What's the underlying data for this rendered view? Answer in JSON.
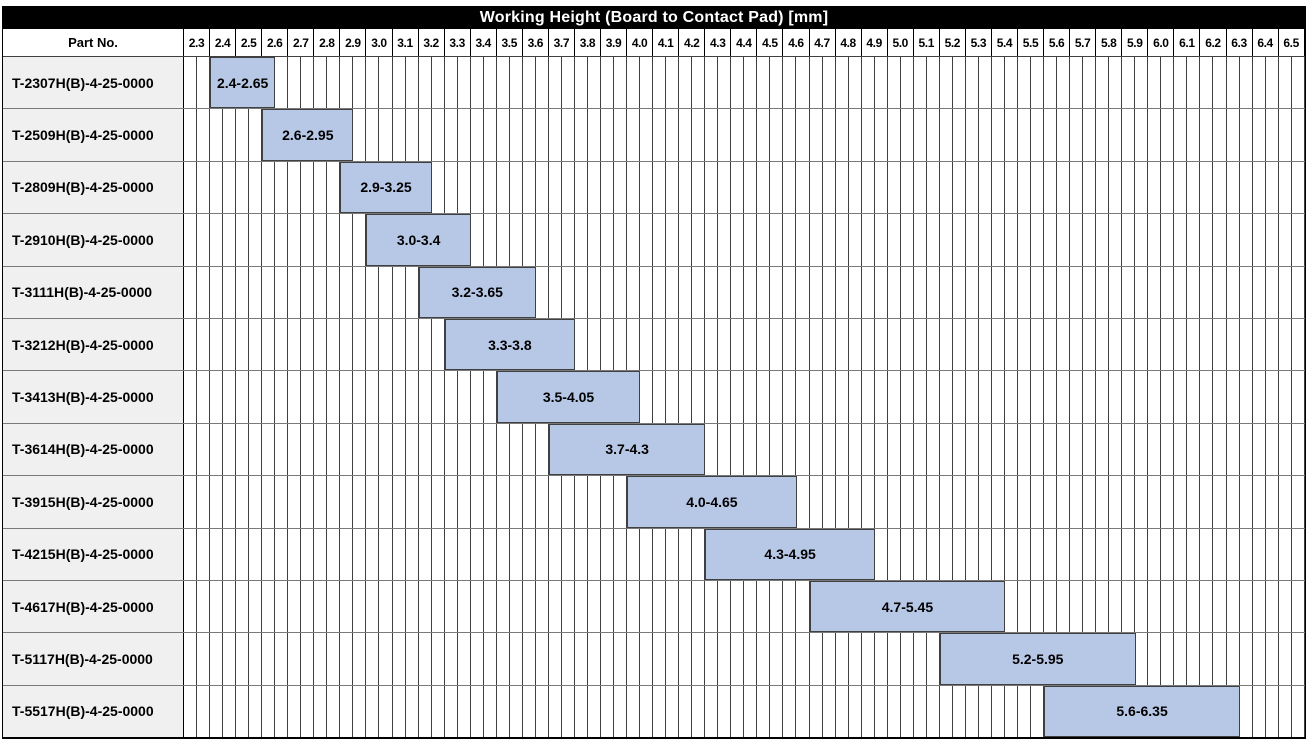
{
  "title": "Working Height (Board to Contact Pad) [mm]",
  "part_no_header": "Part No.",
  "colors": {
    "title_bg": "#000000",
    "title_fg": "#ffffff",
    "bar_fill": "#b7c7e6",
    "bar_border": "#404040",
    "grid_line": "#404040",
    "row_line": "#7a7a7a",
    "part_cell_bg": "#f0f0f0"
  },
  "chart_data": {
    "type": "bar",
    "orientation": "horizontal-range",
    "title": "Working Height (Board to Contact Pad) [mm]",
    "ylabel": "Part No.",
    "xlabel": "Working Height (Board to Contact Pad) [mm]",
    "legend": "none",
    "grid": "on",
    "axis": {
      "min": 2.3,
      "grid_max": 6.6,
      "step": 0.1,
      "substep": 0.05,
      "tick_labels": [
        "2.3",
        "2.4",
        "2.5",
        "2.6",
        "2.7",
        "2.8",
        "2.9",
        "3.0",
        "3.1",
        "3.2",
        "3.3",
        "3.4",
        "3.5",
        "3.6",
        "3.7",
        "3.8",
        "3.9",
        "4.0",
        "4.1",
        "4.2",
        "4.3",
        "4.4",
        "4.5",
        "4.6",
        "4.7",
        "4.8",
        "4.9",
        "5.0",
        "5.1",
        "5.2",
        "5.3",
        "5.4",
        "5.5",
        "5.6",
        "5.7",
        "5.8",
        "5.9",
        "6.0",
        "6.1",
        "6.2",
        "6.3",
        "6.4",
        "6.5"
      ]
    },
    "rows": [
      {
        "part_no": "T-2307H(B)-4-25-0000",
        "range_min": 2.4,
        "range_max": 2.65,
        "label": "2.4-2.65"
      },
      {
        "part_no": "T-2509H(B)-4-25-0000",
        "range_min": 2.6,
        "range_max": 2.95,
        "label": "2.6-2.95"
      },
      {
        "part_no": "T-2809H(B)-4-25-0000",
        "range_min": 2.9,
        "range_max": 3.25,
        "label": "2.9-3.25"
      },
      {
        "part_no": "T-2910H(B)-4-25-0000",
        "range_min": 3.0,
        "range_max": 3.4,
        "label": "3.0-3.4"
      },
      {
        "part_no": "T-3111H(B)-4-25-0000",
        "range_min": 3.2,
        "range_max": 3.65,
        "label": "3.2-3.65"
      },
      {
        "part_no": "T-3212H(B)-4-25-0000",
        "range_min": 3.3,
        "range_max": 3.8,
        "label": "3.3-3.8"
      },
      {
        "part_no": "T-3413H(B)-4-25-0000",
        "range_min": 3.5,
        "range_max": 4.05,
        "label": "3.5-4.05"
      },
      {
        "part_no": "T-3614H(B)-4-25-0000",
        "range_min": 3.7,
        "range_max": 4.3,
        "label": "3.7-4.3"
      },
      {
        "part_no": "T-3915H(B)-4-25-0000",
        "range_min": 4.0,
        "range_max": 4.65,
        "label": "4.0-4.65"
      },
      {
        "part_no": "T-4215H(B)-4-25-0000",
        "range_min": 4.3,
        "range_max": 4.95,
        "label": "4.3-4.95"
      },
      {
        "part_no": "T-4617H(B)-4-25-0000",
        "range_min": 4.7,
        "range_max": 5.45,
        "label": "4.7-5.45"
      },
      {
        "part_no": "T-5117H(B)-4-25-0000",
        "range_min": 5.2,
        "range_max": 5.95,
        "label": "5.2-5.95"
      },
      {
        "part_no": "T-5517H(B)-4-25-0000",
        "range_min": 5.6,
        "range_max": 6.35,
        "label": "5.6-6.35"
      }
    ]
  }
}
